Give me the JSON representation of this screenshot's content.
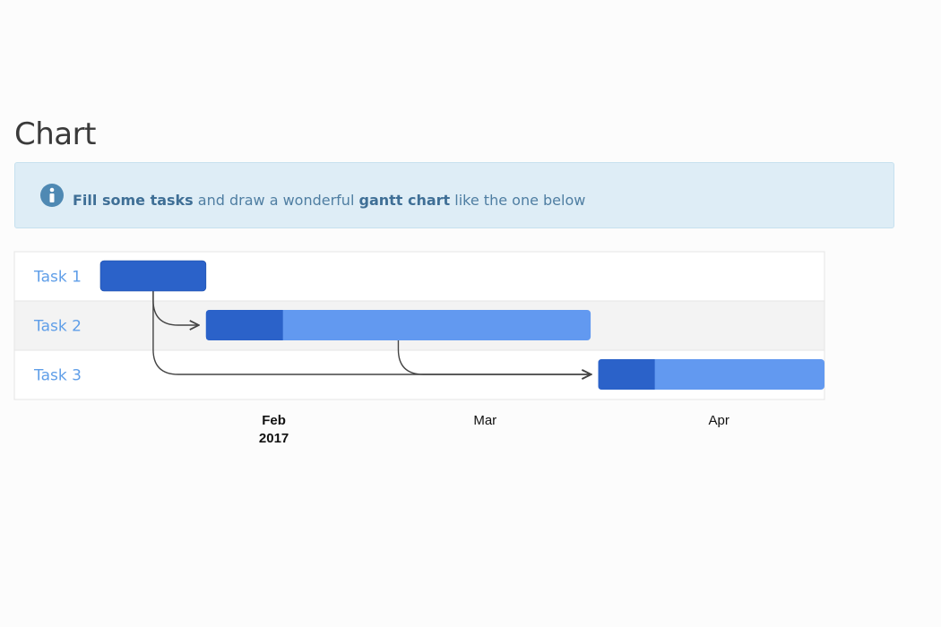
{
  "title": "Chart",
  "info": {
    "icon": "info-circle-icon",
    "strong_1": "Fill some tasks",
    "text_1": " and draw a wonderful ",
    "strong_2": "gantt chart",
    "text_2": " like the one below"
  },
  "colors": {
    "bar_done": "#2b62c9",
    "bar_remaining": "#6299f0",
    "row_alt": "#f3f3f3",
    "row_bg": "#ffffff",
    "info_bg": "#deedf6",
    "label": "#5f9ee8"
  },
  "chart_data": {
    "type": "gantt",
    "x_axis": {
      "ticks": [
        {
          "date": "2017-02-01",
          "label": "Feb",
          "sublabel": "2017"
        },
        {
          "date": "2017-03-01",
          "label": "Mar",
          "sublabel": ""
        },
        {
          "date": "2017-04-01",
          "label": "Apr",
          "sublabel": ""
        }
      ],
      "range": [
        "2017-01-09",
        "2017-04-15"
      ]
    },
    "tasks": [
      {
        "name": "Task 1",
        "start": "2017-01-09",
        "end": "2017-01-23",
        "percent_complete": 100
      },
      {
        "name": "Task 2",
        "start": "2017-01-23",
        "end": "2017-03-15",
        "percent_complete": 20
      },
      {
        "name": "Task 3",
        "start": "2017-03-16",
        "end": "2017-04-15",
        "percent_complete": 25
      }
    ],
    "dependencies": [
      {
        "from": "Task 1",
        "to": "Task 2"
      },
      {
        "from": "Task 1",
        "to": "Task 3"
      },
      {
        "from": "Task 2",
        "to": "Task 3"
      }
    ]
  }
}
